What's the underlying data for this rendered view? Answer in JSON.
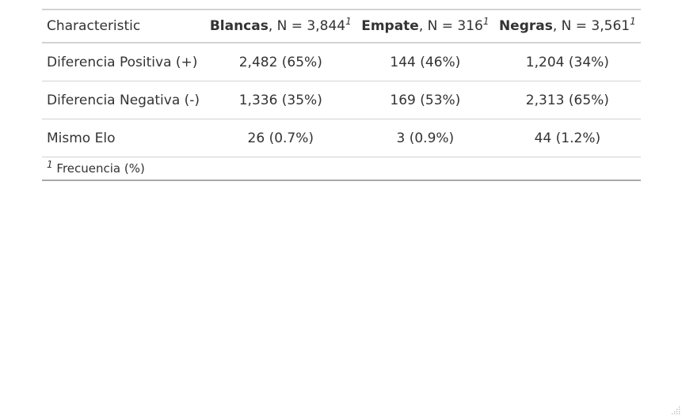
{
  "table": {
    "header": {
      "characteristic": "Characteristic",
      "columns": [
        {
          "name": "Blancas",
          "n": ", N = 3,844",
          "footnote_mark": "1"
        },
        {
          "name": "Empate",
          "n": ", N = 316",
          "footnote_mark": "1"
        },
        {
          "name": "Negras",
          "n": ", N = 3,561",
          "footnote_mark": "1"
        }
      ]
    },
    "rows": [
      {
        "label": "Diferencia Positiva (+)",
        "values": [
          "2,482 (65%)",
          "144 (46%)",
          "1,204 (34%)"
        ]
      },
      {
        "label": "Diferencia Negativa (-)",
        "values": [
          "1,336 (35%)",
          "169 (53%)",
          "2,313 (65%)"
        ]
      },
      {
        "label": "Mismo Elo",
        "values": [
          "26 (0.7%)",
          "3 (0.9%)",
          "44 (1.2%)"
        ]
      }
    ],
    "footnote": {
      "mark": "1",
      "text": " Frecuencia (%)"
    }
  },
  "icons": {
    "resize_grip": "resize-grip-icon"
  }
}
